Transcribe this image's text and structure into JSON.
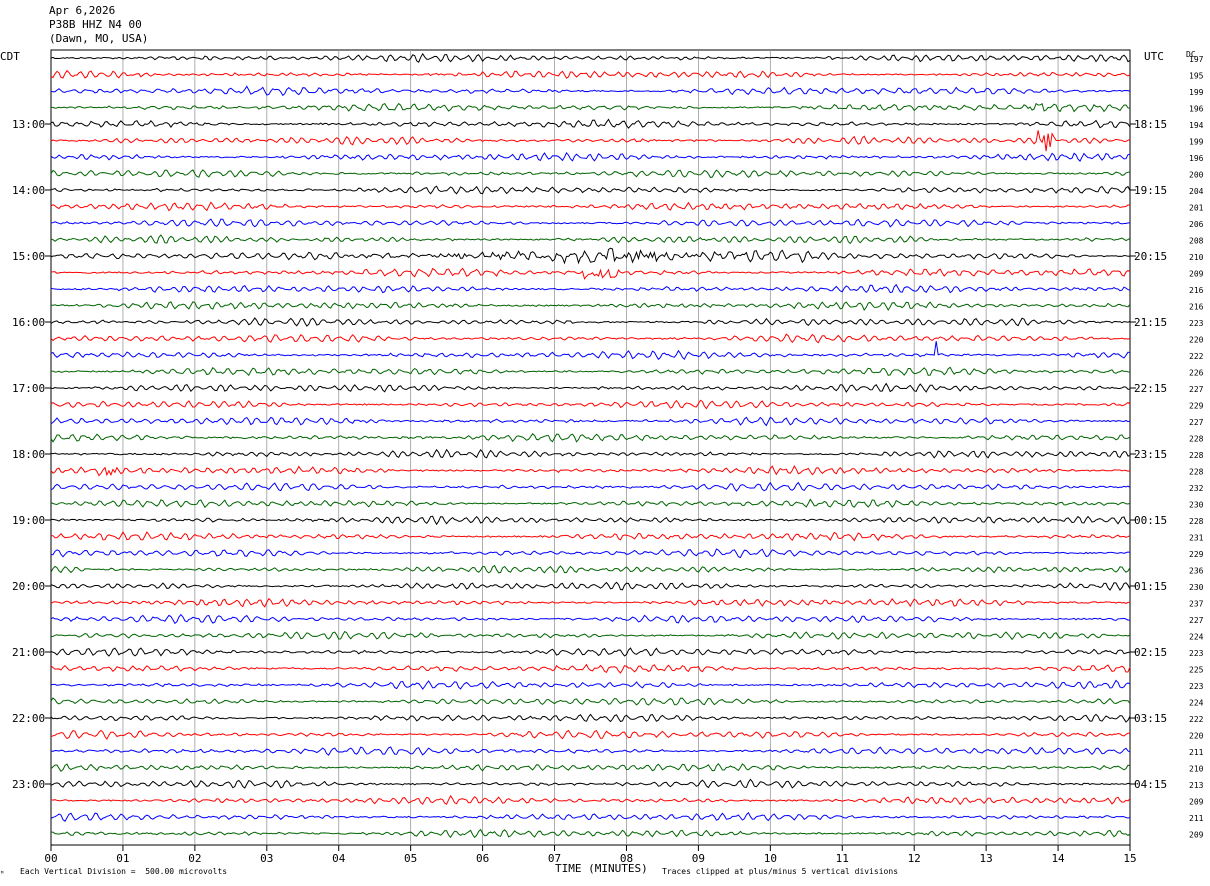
{
  "header": {
    "date": "Apr 6,2026",
    "station": "P38B HHZ N4 00",
    "location": "(Dawn, MO, USA)"
  },
  "left_tz": "CDT",
  "right_tz": "UTC",
  "dc_label": "DC",
  "footer": {
    "scale": "Each Vertical Division =  500.00 microvolts",
    "xlabel": "TIME (MINUTES)",
    "clip_note": "Traces clipped at plus/minus 5 vertical divisions"
  },
  "chart_data": {
    "type": "line",
    "title": "",
    "xlabel": "TIME (MINUTES)",
    "xlim": [
      0,
      15
    ],
    "x_ticks": [
      "00",
      "01",
      "02",
      "03",
      "04",
      "05",
      "06",
      "07",
      "08",
      "09",
      "10",
      "11",
      "12",
      "13",
      "14",
      "15"
    ],
    "grid": true,
    "trace_colors": [
      "#000000",
      "#ff0000",
      "#0000ff",
      "#006400"
    ],
    "left_time_labels": [
      "13:00",
      "14:00",
      "15:00",
      "16:00",
      "17:00",
      "18:00",
      "19:00",
      "20:00",
      "21:00",
      "22:00",
      "23:00"
    ],
    "right_time_labels": [
      "18:15",
      "19:15",
      "20:15",
      "21:15",
      "22:15",
      "23:15",
      "00:15",
      "01:15",
      "02:15",
      "03:15",
      "04:15"
    ],
    "dc_offsets": [
      "197",
      "195",
      "199",
      "196",
      "194",
      "199",
      "196",
      "200",
      "204",
      "201",
      "206",
      "208",
      "210",
      "209",
      "216",
      "216",
      "223",
      "220",
      "222",
      "226",
      "227",
      "229",
      "227",
      "228",
      "228",
      "228",
      "232",
      "230",
      "228",
      "231",
      "229",
      "236",
      "230",
      "237",
      "227",
      "224",
      "223",
      "225",
      "223",
      "224",
      "222",
      "220",
      "211",
      "210",
      "213",
      "209",
      "211",
      "209"
    ]
  }
}
